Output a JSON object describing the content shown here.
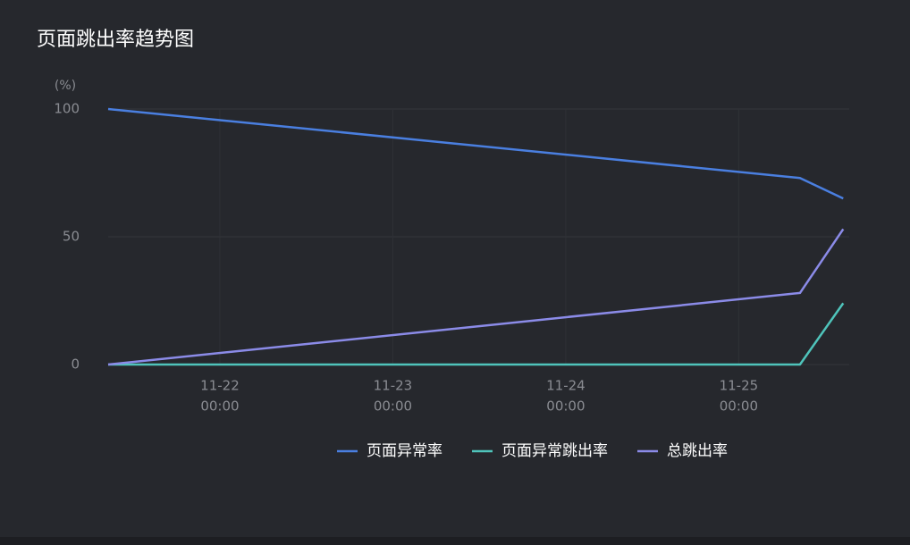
{
  "chart_data": {
    "type": "line",
    "title": "页面跳出率趋势图",
    "y_unit": "(%)",
    "x": [
      "11-21 08:30",
      "11-25 08:30",
      "11-25 14:30"
    ],
    "xlim": [
      "11-21 08:30",
      "11-25 15:20"
    ],
    "xticks": [
      {
        "value": "11-22 00:00",
        "label": [
          "11-22",
          "00:00"
        ]
      },
      {
        "value": "11-23 00:00",
        "label": [
          "11-23",
          "00:00"
        ]
      },
      {
        "value": "11-24 00:00",
        "label": [
          "11-24",
          "00:00"
        ]
      },
      {
        "value": "11-25 00:00",
        "label": [
          "11-25",
          "00:00"
        ]
      }
    ],
    "ylim": [
      0,
      100
    ],
    "yticks": [
      0,
      50,
      100
    ],
    "grid": true,
    "legend": "bottom",
    "series": [
      {
        "name": "页面异常率",
        "color": "#4a7fe0",
        "values": [
          100,
          73,
          65
        ]
      },
      {
        "name": "页面异常跳出率",
        "color": "#4fc4bb",
        "values": [
          0,
          0,
          24
        ]
      },
      {
        "name": "总跳出率",
        "color": "#8b8be8",
        "values": [
          0,
          28,
          53
        ]
      }
    ]
  }
}
